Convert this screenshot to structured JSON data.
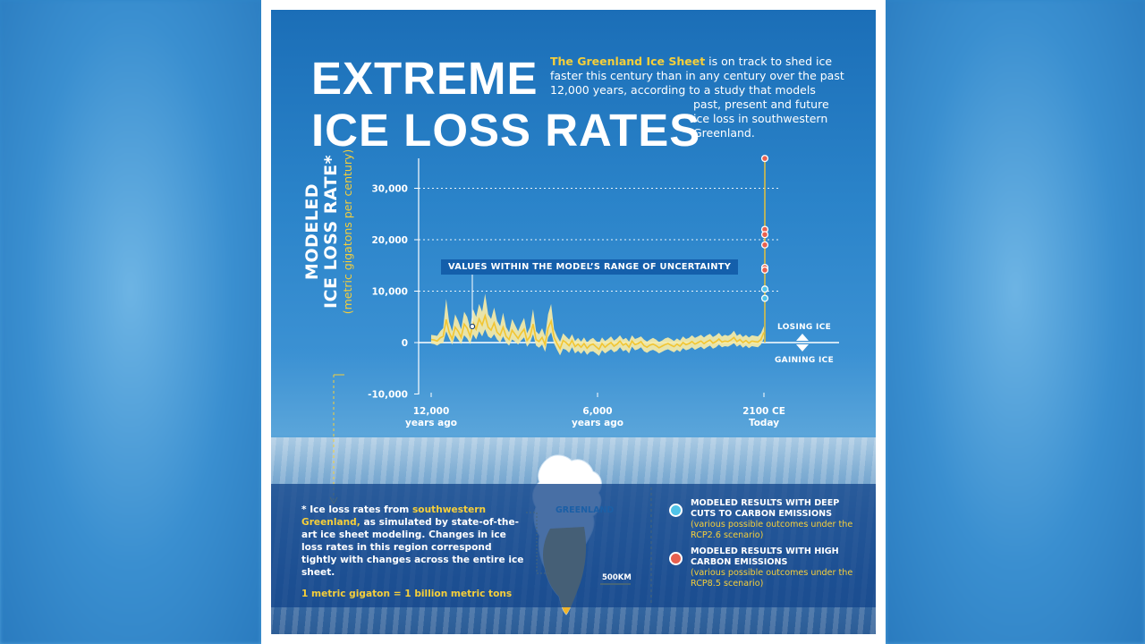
{
  "title": {
    "line1": "EXTREME",
    "line2": "ICE LOSS RATES"
  },
  "intro": {
    "highlight": "The Greenland Ice Sheet",
    "part1": " is on track to shed ice faster this century than in any century over the past 12,000 years, according to a study that models",
    "part2": "past, present and future ice loss in southwestern Greenland."
  },
  "y_axis": {
    "line1": "MODELED",
    "line2": "ICE LOSS RATE*",
    "line3": "(metric gigatons per century)"
  },
  "callout": "VALUES WITHIN THE MODEL’S RANGE OF UNCERTAINTY",
  "side_labels": {
    "losing": "LOSING ICE",
    "gaining": "GAINING ICE"
  },
  "chart_data": {
    "type": "line",
    "y_ticks": [
      "30,000",
      "20,000",
      "10,000",
      "0",
      "-10,000"
    ],
    "ylim": [
      -10000,
      35000
    ],
    "x_ticks": [
      {
        "l1": "12,000",
        "l2": "years ago"
      },
      {
        "l1": "6,000",
        "l2": "years ago"
      },
      {
        "l1": "2100 CE",
        "l2": "Today"
      }
    ],
    "series": [
      {
        "values": [
          600,
          500,
          300,
          900,
          1200,
          4500,
          2000,
          700,
          3000,
          2200,
          1000,
          3600,
          2800,
          1200,
          3800,
          2600,
          4600,
          3400,
          5200,
          3000,
          2400,
          3800,
          2000,
          1400,
          3000,
          1200,
          600,
          2400,
          1600,
          800,
          1800,
          2600,
          400,
          1200,
          3600,
          600,
          200,
          1000,
          -400,
          2800,
          4200,
          1000,
          -200,
          -1200,
          400,
          0,
          -600,
          400,
          -800,
          -300,
          -900,
          -200,
          -1100,
          -500,
          -300,
          -800,
          -1300,
          -200,
          -900,
          -400,
          0,
          -700,
          -300,
          300,
          -500,
          -200,
          -900,
          300,
          -400,
          -200,
          200,
          -600,
          -900,
          -500,
          -300,
          -600,
          -1000,
          -700,
          -400,
          -200,
          -500,
          -800,
          -300,
          -700,
          0,
          -400,
          -200,
          200,
          -300,
          0,
          300,
          -200,
          200,
          500,
          -100,
          200,
          700,
          100,
          300,
          200,
          500,
          1000,
          200,
          600,
          0,
          400,
          -100,
          300,
          200,
          100,
          600,
          2000
        ],
        "lower": [
          -200,
          -300,
          -600,
          -200,
          -100,
          2200,
          800,
          -400,
          1400,
          600,
          -300,
          1400,
          800,
          -300,
          1600,
          600,
          2200,
          1200,
          2600,
          1200,
          800,
          1600,
          600,
          0,
          1200,
          0,
          -600,
          600,
          200,
          -400,
          400,
          1000,
          -800,
          0,
          1600,
          -600,
          -1000,
          -400,
          -1800,
          1000,
          2000,
          -200,
          -1400,
          -2500,
          -1200,
          -1400,
          -2000,
          -900,
          -2100,
          -1600,
          -2200,
          -1500,
          -2400,
          -1800,
          -1700,
          -2100,
          -2600,
          -1500,
          -2100,
          -1700,
          -1300,
          -1900,
          -1600,
          -900,
          -1700,
          -1400,
          -2100,
          -800,
          -1500,
          -1300,
          -900,
          -1700,
          -2000,
          -1600,
          -1400,
          -1700,
          -2100,
          -1800,
          -1500,
          -1300,
          -1600,
          -1900,
          -1400,
          -1800,
          -1100,
          -1500,
          -1300,
          -900,
          -1400,
          -1100,
          -800,
          -1300,
          -900,
          -600,
          -1200,
          -900,
          -400,
          -900,
          -700,
          -800,
          -500,
          -100,
          -800,
          -400,
          -1000,
          -600,
          -1100,
          -700,
          -800,
          -900,
          -400,
          800
        ],
        "upper": [
          1500,
          1400,
          1300,
          2200,
          2800,
          8500,
          4000,
          2200,
          5500,
          4200,
          2600,
          6000,
          5000,
          2800,
          6500,
          5000,
          7500,
          6000,
          9500,
          5500,
          4600,
          6800,
          4200,
          3200,
          5800,
          3000,
          2000,
          4600,
          3400,
          2200,
          3600,
          4800,
          1800,
          3000,
          6500,
          2200,
          1600,
          2800,
          1200,
          5500,
          7500,
          2600,
          1200,
          200,
          1800,
          1200,
          600,
          1600,
          300,
          900,
          200,
          1000,
          0,
          600,
          900,
          300,
          -100,
          1000,
          300,
          700,
          1200,
          400,
          800,
          1400,
          600,
          900,
          200,
          1400,
          700,
          900,
          1200,
          600,
          200,
          600,
          900,
          600,
          100,
          400,
          800,
          1000,
          700,
          300,
          800,
          400,
          1200,
          700,
          900,
          1400,
          900,
          1200,
          1500,
          1000,
          1400,
          1700,
          1100,
          1400,
          1900,
          1200,
          1500,
          1300,
          1600,
          2300,
          1300,
          1700,
          1100,
          1500,
          1000,
          1400,
          1300,
          1200,
          1800,
          3200
        ]
      }
    ],
    "future_high": [
      35800,
      22000,
      21000,
      19000,
      14600,
      14100
    ],
    "future_low": [
      10400,
      8600
    ]
  },
  "footnote": {
    "star": "* Ice loss rates from ",
    "highlight": "southwestern Greenland,",
    "rest": " as simulated by state-of-the-art ice sheet modeling. Changes in ice loss rates in this region correspond tightly with changes across the entire ice sheet.",
    "gigaton": "1 metric gigaton = 1 billion metric tons"
  },
  "map": {
    "label": "GREENLAND",
    "scale": "500KM"
  },
  "legend": [
    {
      "title": "MODELED RESULTS WITH DEEP CUTS TO CARBON EMISSIONS",
      "sub": "(various possible outcomes under the RCP2.6 scenario)",
      "color": "#4fc3e8"
    },
    {
      "title": "MODELED RESULTS WITH HIGH CARBON EMISSIONS",
      "sub": "(various possible outcomes under the RCP8.5 scenario)",
      "color": "#e8604f"
    }
  ],
  "colors": {
    "accent": "#f6cf3a",
    "band": "#f7eca6",
    "line": "#f2c531",
    "future_line": "#f2c531"
  }
}
